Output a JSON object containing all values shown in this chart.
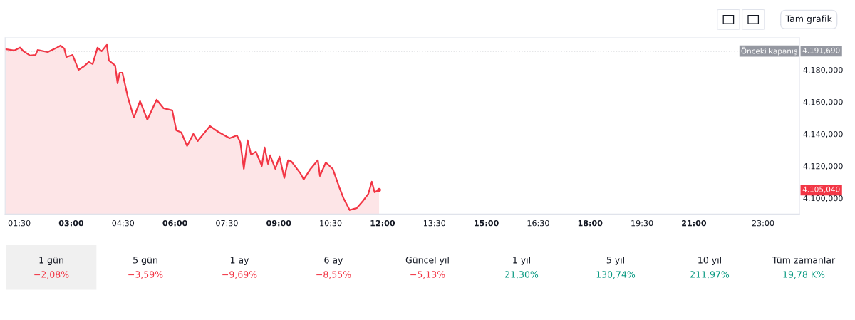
{
  "chart_data": [
    {
      "type": "area",
      "x": [
        1.09,
        1.36,
        1.52,
        1.62,
        1.81,
        1.97,
        2.03,
        2.32,
        2.59,
        2.69,
        2.8,
        2.86,
        3.04,
        3.21,
        3.37,
        3.51,
        3.62,
        3.76,
        3.88,
        4.03,
        4.09,
        4.27,
        4.34,
        4.4,
        4.48,
        4.64,
        4.81,
        4.99,
        5.2,
        5.47,
        5.67,
        5.92,
        6.04,
        6.18,
        6.35,
        6.53,
        6.66,
        7.01,
        7.25,
        7.58,
        7.79,
        7.89,
        7.99,
        8.1,
        8.2,
        8.34,
        8.51,
        8.59,
        8.69,
        8.75,
        8.9,
        9.02,
        9.16,
        9.27,
        9.37,
        9.62,
        9.72,
        9.92,
        10.13,
        10.19,
        10.36,
        10.56,
        10.75,
        10.87,
        11.05,
        11.26,
        11.42,
        11.59,
        11.69,
        11.77,
        11.9
      ],
      "series": [
        {
          "color": "#f23645",
          "values": [
            4192.9,
            4192.1,
            4193.9,
            4191.6,
            4188.9,
            4189.3,
            4192.4,
            4191.1,
            4193.9,
            4195.1,
            4193.3,
            4188.0,
            4189.3,
            4180.0,
            4182.2,
            4184.9,
            4183.6,
            4193.8,
            4191.6,
            4195.6,
            4185.8,
            4182.7,
            4171.6,
            4178.2,
            4178.2,
            4162.7,
            4150.2,
            4160.5,
            4148.9,
            4161.3,
            4156.0,
            4154.7,
            4142.2,
            4141.0,
            4132.5,
            4140.0,
            4135.6,
            4144.9,
            4141.3,
            4137.3,
            4139.1,
            4134.7,
            4118.2,
            4136.0,
            4127.1,
            4128.9,
            4120.0,
            4131.6,
            4121.3,
            4126.7,
            4118.2,
            4125.8,
            4112.5,
            4123.6,
            4122.7,
            4115.6,
            4111.6,
            4118.2,
            4123.6,
            4113.8,
            4122.2,
            4118.2,
            4106.7,
            4100.0,
            4092.5,
            4093.8,
            4097.8,
            4102.7,
            4110.2,
            4103.6,
            4105.04
          ],
          "value_labels": [
            null,
            null,
            null,
            null,
            null,
            null,
            null,
            null,
            null,
            null,
            null,
            null,
            null,
            null,
            null,
            null,
            null,
            null,
            null,
            null,
            null,
            null,
            null,
            null,
            null,
            null,
            null,
            null,
            null,
            null,
            null,
            null,
            null,
            null,
            null,
            null,
            null,
            null,
            null,
            null,
            null,
            null,
            null,
            null,
            null,
            null,
            null,
            null,
            null,
            null,
            null,
            null,
            null,
            null,
            null,
            null,
            null,
            null,
            null,
            null,
            null,
            null,
            null,
            null,
            null,
            null,
            null,
            null,
            null,
            null,
            null
          ]
        }
      ],
      "xlim": [
        1.09,
        24.05
      ],
      "xticks": [
        {
          "value": 1.5,
          "label": "01:30"
        },
        {
          "value": 3,
          "label": "03:00"
        },
        {
          "value": 4.5,
          "label": "04:30"
        },
        {
          "value": 6,
          "label": "06:00"
        },
        {
          "value": 7.5,
          "label": "07:30"
        },
        {
          "value": 9,
          "label": "09:00"
        },
        {
          "value": 10.5,
          "label": "10:30"
        },
        {
          "value": 12,
          "label": "12:00"
        },
        {
          "value": 13.5,
          "label": "13:30"
        },
        {
          "value": 15,
          "label": "15:00"
        },
        {
          "value": 16.5,
          "label": "16:30"
        },
        {
          "value": 18,
          "label": "18:00"
        },
        {
          "value": 19.5,
          "label": "19:30"
        },
        {
          "value": 21,
          "label": "21:00"
        },
        {
          "value": 23,
          "label": "23:00"
        }
      ],
      "ylim": [
        4090,
        4200
      ],
      "yticks": [
        {
          "value": 4100,
          "label": "4.100,000"
        },
        {
          "value": 4120,
          "label": "4.120,000"
        },
        {
          "value": 4140,
          "label": "4.140,000"
        },
        {
          "value": 4160,
          "label": "4.160,000"
        },
        {
          "value": 4180,
          "label": "4.180,000"
        }
      ],
      "ref_lines": [
        {
          "axis": "y",
          "value": 4191.69,
          "label": "Önceki kapanış",
          "color": "#9598a1",
          "line_style": "dotted"
        }
      ],
      "annotations": [
        {
          "text": "4.191,690",
          "x": 24.05,
          "y": 4191.69
        },
        "4.105,040",
        "Tam grafik"
      ],
      "grid": false
    },
    {
      "type": "other",
      "categories": [
        "1 gün",
        "5 gün",
        "1 ay",
        "6 ay",
        "Güncel yıl",
        "1 yıl",
        "5 yıl",
        "10 yıl",
        "Tüm zamanlar"
      ],
      "value_labels": [
        "−2,08%",
        "−3,59%",
        "−9,69%",
        "−8,55%",
        "−5,13%",
        "21,30%",
        "130,74%",
        "211,97%",
        "19,78 K%"
      ],
      "colors": [
        "#f23645",
        "#f23645",
        "#f23645",
        "#f23645",
        "#f23645",
        "#089981",
        "#089981",
        "#089981",
        "#089981"
      ]
    }
  ]
}
